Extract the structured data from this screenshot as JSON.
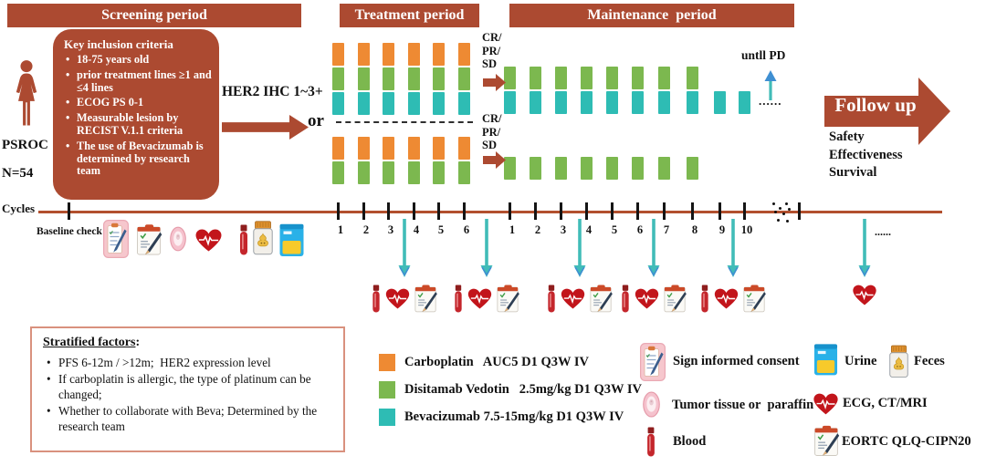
{
  "colors": {
    "brick": "#AC4A31",
    "timeline": "#B2502E",
    "box_border": "#D9917E",
    "carboplatin_orange": "#EE8A33",
    "disitamab_green": "#7CB84F",
    "bevacizumab_teal": "#2EBCB4",
    "arrow_teal": "#41BCB8",
    "arrow_blue": "#3F8FD2"
  },
  "banners": {
    "screening": "Screening period",
    "treatment": "Treatment period",
    "maintenance": "Maintenance  period"
  },
  "patient": {
    "population": "PSROC",
    "n": "N=54"
  },
  "inclusion_box": {
    "title": "Key inclusion criteria",
    "items": [
      "18-75 years old",
      "prior treatment lines ≥1 and ≤4 lines",
      "ECOG PS 0-1",
      "Measurable lesion by RECIST V.1.1 criteria",
      "The use of Bevacizumab is determined by research team"
    ]
  },
  "labels": {
    "her2": "HER2 IHC 1~3+",
    "or": "or",
    "response_lines": [
      "CR/",
      "PR/",
      "SD"
    ],
    "until_pd": "untll PD",
    "dots": "......"
  },
  "followup": {
    "title": "Follow up",
    "endpoints": [
      "Safety",
      "Effectiveness",
      "Survival"
    ]
  },
  "timeline": {
    "cycles_label": "Cycles",
    "baseline_label": "Baseline check",
    "baseline_icons": [
      "consent",
      "eortc",
      "tumor",
      "ecg",
      "blood",
      "feces",
      "urine"
    ],
    "treatment_cycles": [
      "1",
      "2",
      "3",
      "4",
      "5",
      "6"
    ],
    "maintenance_cycles": [
      "1",
      "2",
      "3",
      "4",
      "5",
      "6",
      "7",
      "8",
      "9",
      "10"
    ],
    "assessment_icons": [
      "blood",
      "ecg",
      "eortc"
    ],
    "final_assessment_icons": [
      "ecg"
    ]
  },
  "regimen": {
    "treatment_arm1_stack": [
      "carboplatin",
      "disitamab",
      "bevacizumab"
    ],
    "treatment_arm2_stack": [
      "carboplatin",
      "disitamab"
    ],
    "treatment_cycles": 6,
    "maintenance_arm1_full_stack": [
      "disitamab",
      "bevacizumab"
    ],
    "maintenance_arm1_full_cycles": 8,
    "maintenance_arm1_tail_stack": [
      "bevacizumab"
    ],
    "maintenance_arm1_tail_cycles": 2,
    "maintenance_arm2_stack": [
      "disitamab"
    ],
    "maintenance_arm2_cycles": 8
  },
  "drug_legend": [
    {
      "drug": "carboplatin",
      "label": "Carboplatin   AUC5 D1 Q3W IV"
    },
    {
      "drug": "disitamab",
      "label": "Disitamab Vedotin   2.5mg/kg D1 Q3W IV"
    },
    {
      "drug": "bevacizumab",
      "label": "Bevacizumab 7.5-15mg/kg D1 Q3W IV"
    }
  ],
  "stratified_box": {
    "title": "Stratified factors",
    "colon": ":",
    "items": [
      "PFS 6-12m / >12m;  HER2 expression level",
      "If carboplatin is allergic, the type of platinum can be changed;",
      "Whether to collaborate with Beva; Determined by the research team"
    ]
  },
  "icon_legend": [
    {
      "icon": "consent",
      "label": "Sign informed consent"
    },
    {
      "icon": "tumor",
      "label": "Tumor tissue or  paraffin"
    },
    {
      "icon": "blood",
      "label": "Blood"
    },
    {
      "icon": "urine",
      "label": "Urine"
    },
    {
      "icon": "feces",
      "label": "Feces"
    },
    {
      "icon": "ecg",
      "label": "ECG, CT/MRI"
    },
    {
      "icon": "eortc",
      "label": "EORTC QLQ-CIPN20"
    }
  ]
}
